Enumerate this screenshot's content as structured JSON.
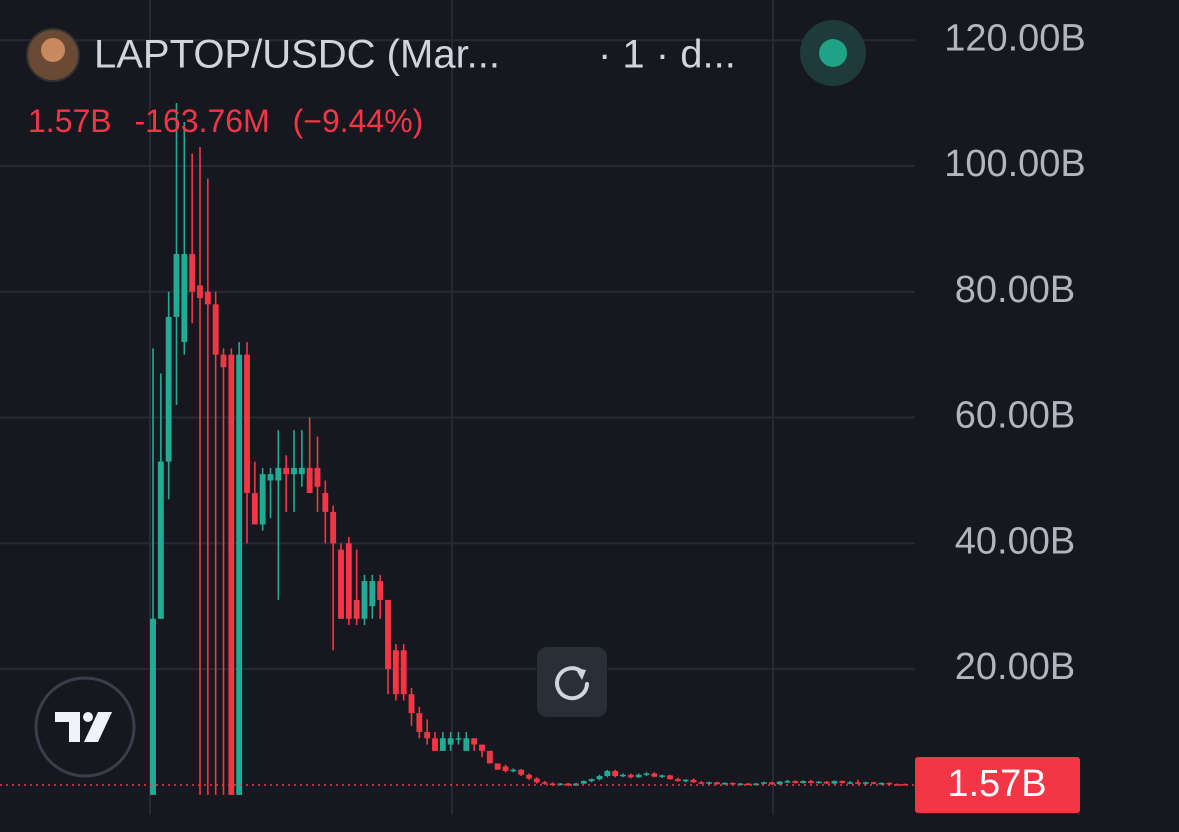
{
  "header": {
    "symbol": "LAPTOP/USDC (Mar...",
    "interval": "· 1 · d...",
    "price": "1.57B",
    "change": "-163.76M",
    "change_pct": "(−9.44%)"
  },
  "chart_data": {
    "type": "candlestick",
    "open": [
      0,
      28,
      53,
      76,
      72,
      86,
      81,
      80,
      78,
      70,
      70,
      0,
      70,
      48,
      43,
      50,
      50,
      52,
      51,
      51,
      52,
      52,
      48,
      45,
      39,
      40,
      31,
      28,
      30,
      34,
      31,
      23,
      23,
      16,
      13,
      10,
      9,
      7,
      8,
      9,
      7,
      9,
      8,
      7,
      5,
      4.5,
      3.8,
      4.0,
      3.2,
      2.6,
      2.0,
      1.8,
      1.6,
      1.8,
      1.5,
      1.8,
      2.2,
      2.5,
      3.0,
      3.8,
      3.0,
      3.2,
      2.8,
      3.2,
      3.4,
      2.9,
      3.1,
      2.5,
      2.2,
      2.4,
      2.0,
      1.8,
      2.0,
      1.7,
      1.9,
      1.7,
      1.8,
      1.6,
      1.8,
      2.0,
      1.7,
      2.1,
      2.2,
      1.9,
      2.2,
      1.9,
      2.1,
      1.8,
      2.2,
      1.9,
      2.0,
      1.8,
      2.0,
      1.8,
      1.9,
      1.7,
      1.73
    ],
    "high": [
      71,
      67,
      80,
      110,
      107,
      102,
      103,
      98,
      80,
      71,
      71,
      72,
      72,
      53,
      52,
      52,
      58,
      54,
      58,
      58,
      60,
      57,
      50,
      46,
      40,
      41,
      39,
      35,
      35,
      35,
      31,
      24,
      24,
      17,
      14,
      12,
      10,
      10,
      10,
      10,
      10,
      9,
      8,
      7,
      5,
      4.8,
      4.2,
      4.1,
      3.4,
      2.8,
      2.2,
      2.0,
      1.9,
      1.9,
      1.9,
      2.3,
      2.6,
      3.2,
      4.0,
      4.0,
      3.4,
      3.4,
      3.4,
      3.6,
      3.6,
      3.2,
      3.2,
      2.7,
      2.5,
      2.6,
      2.2,
      2.1,
      2.1,
      2.0,
      2.0,
      1.9,
      1.9,
      1.9,
      2.1,
      2.1,
      2.2,
      2.4,
      2.3,
      2.3,
      2.4,
      2.2,
      2.2,
      2.3,
      2.3,
      2.2,
      2.4,
      2.1,
      2.1,
      2.0,
      2.0,
      1.8,
      1.8
    ],
    "low": [
      0,
      28,
      47,
      62,
      70,
      75,
      0,
      0,
      0,
      0,
      0,
      0,
      40,
      43,
      42,
      44,
      31,
      45,
      45,
      49,
      48,
      45,
      40,
      23,
      28,
      27,
      27,
      27,
      28,
      28,
      16,
      15,
      15,
      11,
      9,
      8,
      7,
      7,
      7,
      8,
      7,
      7,
      6,
      5,
      4,
      3.6,
      3.6,
      3.0,
      2.4,
      1.8,
      1.6,
      1.4,
      1.5,
      1.4,
      1.4,
      1.7,
      2.0,
      2.3,
      2.8,
      2.8,
      2.8,
      2.6,
      2.7,
      3.0,
      2.8,
      2.7,
      2.4,
      2.1,
      2.0,
      1.9,
      1.7,
      1.7,
      1.6,
      1.6,
      1.6,
      1.5,
      1.5,
      1.5,
      1.7,
      1.6,
      1.6,
      1.9,
      1.8,
      1.8,
      1.8,
      1.8,
      1.7,
      1.7,
      1.8,
      1.7,
      1.7,
      1.6,
      1.7,
      1.6,
      1.6,
      1.5,
      1.55
    ],
    "close": [
      28,
      53,
      76,
      86,
      86,
      80,
      79,
      78,
      70,
      68,
      0,
      70,
      48,
      43,
      51,
      51,
      52,
      51,
      52,
      52,
      48,
      49,
      45,
      40,
      28,
      28,
      28,
      34,
      34,
      31,
      20,
      16,
      16,
      13,
      10,
      9,
      7,
      9,
      9,
      9,
      9,
      8,
      7,
      5,
      4,
      3.8,
      4.0,
      3.2,
      2.6,
      2.0,
      1.8,
      1.6,
      1.8,
      1.5,
      1.8,
      2.2,
      2.5,
      3.0,
      3.8,
      3.0,
      3.2,
      2.8,
      3.2,
      3.4,
      2.9,
      3.1,
      2.5,
      2.2,
      2.4,
      2.0,
      1.8,
      2.0,
      1.7,
      1.9,
      1.7,
      1.8,
      1.6,
      1.8,
      2.0,
      1.7,
      2.1,
      2.2,
      1.9,
      2.2,
      1.9,
      2.1,
      1.8,
      2.2,
      1.9,
      2.0,
      1.8,
      2.0,
      1.8,
      1.9,
      1.7,
      1.6,
      1.57
    ],
    "up_color": "#22ab94",
    "down_color": "#f23645",
    "ylim": [
      -3.2,
      126.4
    ],
    "yticks": [
      {
        "value": 20,
        "label": "20.00B"
      },
      {
        "value": 40,
        "label": "40.00B"
      },
      {
        "value": 60,
        "label": "60.00B"
      },
      {
        "value": 80,
        "label": "80.00B"
      },
      {
        "value": 100,
        "label": "100.00B"
      },
      {
        "value": 120,
        "label": "120.00B"
      }
    ],
    "grid": true,
    "last_price": {
      "value": 1.57,
      "label": "1.57B"
    }
  }
}
